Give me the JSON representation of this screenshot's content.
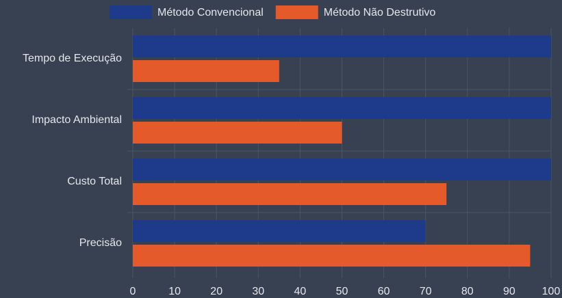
{
  "chart_data": {
    "type": "bar",
    "orientation": "horizontal",
    "categories": [
      "Tempo de Execução",
      "Impacto Ambiental",
      "Custo Total",
      "Precisão"
    ],
    "series": [
      {
        "name": "Método Convencional",
        "color": "#1e3a8a",
        "values": [
          100,
          100,
          100,
          70
        ]
      },
      {
        "name": "Método Não Destrutivo",
        "color": "#e55a2b",
        "values": [
          35,
          50,
          75,
          95
        ]
      }
    ],
    "xlim": [
      0,
      100
    ],
    "xticks": [
      0,
      10,
      20,
      30,
      40,
      50,
      60,
      70,
      80,
      90,
      100
    ],
    "grid": true,
    "legend": "top"
  }
}
